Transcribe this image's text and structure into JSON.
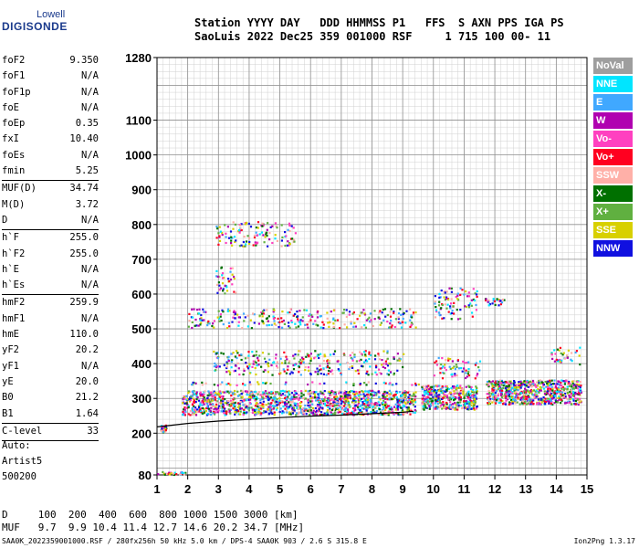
{
  "logo": {
    "line1": "Lowell",
    "line2": "DIGISONDE"
  },
  "header": {
    "line1": "Station YYYY DAY   DDD HHMMSS P1   FFS  S AXN PPS IGA PS",
    "line2": "SaoLuis 2022 Dec25 359 001000 RSF     1 715 100 00- 11"
  },
  "params": {
    "g1": [
      [
        "foF2",
        "9.350"
      ],
      [
        "foF1",
        "N/A"
      ],
      [
        "foF1p",
        "N/A"
      ],
      [
        "foE",
        "N/A"
      ],
      [
        "foEp",
        "0.35"
      ],
      [
        "fxI",
        "10.40"
      ],
      [
        "foEs",
        "N/A"
      ],
      [
        "fmin",
        "5.25"
      ]
    ],
    "g2": [
      [
        "MUF(D)",
        "34.74"
      ],
      [
        "M(D)",
        "3.72"
      ],
      [
        "D",
        "N/A"
      ]
    ],
    "g3": [
      [
        "h`F",
        "255.0"
      ],
      [
        "h`F2",
        "255.0"
      ],
      [
        "h`E",
        "N/A"
      ],
      [
        "h`Es",
        "N/A"
      ]
    ],
    "g4": [
      [
        "hmF2",
        "259.9"
      ],
      [
        "hmF1",
        "N/A"
      ],
      [
        "hmE",
        "110.0"
      ],
      [
        "yF2",
        "20.2"
      ],
      [
        "yF1",
        "N/A"
      ],
      [
        "yE",
        "20.0"
      ],
      [
        "B0",
        "21.2"
      ],
      [
        "B1",
        "1.64"
      ]
    ],
    "g5": [
      [
        "C-level",
        "33"
      ]
    ]
  },
  "auto": {
    "l1": "Auto:",
    "l2": "Artist5",
    "l3": "500200"
  },
  "legend": [
    {
      "label": "NoVal",
      "color": "#9e9e9e"
    },
    {
      "label": "NNE",
      "color": "#00e5ff"
    },
    {
      "label": "E",
      "color": "#40a8ff"
    },
    {
      "label": "W",
      "color": "#b000b0"
    },
    {
      "label": "Vo-",
      "color": "#ff40c0"
    },
    {
      "label": "Vo+",
      "color": "#ff0020"
    },
    {
      "label": "SSW",
      "color": "#ffb0a8"
    },
    {
      "label": "X-",
      "color": "#007000"
    },
    {
      "label": "X+",
      "color": "#60b040"
    },
    {
      "label": "SSE",
      "color": "#d8d000"
    },
    {
      "label": "NNW",
      "color": "#1010e0"
    }
  ],
  "muf_table": {
    "row1": "D     100  200  400  600  800 1000 1500 3000 [km]",
    "row2": "MUF   9.7  9.9 10.4 11.4 12.7 14.6 20.2 34.7 [MHz]"
  },
  "footer": {
    "left": "SAA0K_2022359001000.RSF / 280fx256h 50 kHz 5.0 km / DPS-4 SAA0K 903 / 2.6 S 315.8 E",
    "right": "Ion2Png 1.3.17"
  },
  "chart_data": {
    "type": "scatter",
    "xlim": [
      1,
      15
    ],
    "x_ticks": [
      1,
      2,
      3,
      4,
      5,
      6,
      7,
      8,
      9,
      10,
      11,
      12,
      13,
      14,
      15
    ],
    "ylim": [
      80,
      1280
    ],
    "y_ticks": [
      80,
      200,
      300,
      400,
      500,
      600,
      700,
      800,
      900,
      1000,
      1100,
      1280
    ],
    "grid": true,
    "trace": [
      [
        1.0,
        218
      ],
      [
        2.0,
        228
      ],
      [
        3.0,
        235
      ],
      [
        4.0,
        240
      ],
      [
        5.0,
        245
      ],
      [
        6.0,
        249
      ],
      [
        7.0,
        252
      ],
      [
        8.0,
        256
      ],
      [
        9.0,
        260
      ],
      [
        9.35,
        263
      ]
    ],
    "clusters": [
      {
        "x": [
          1.0,
          1.9
        ],
        "y": [
          82,
          92
        ]
      },
      {
        "x": [
          1.1,
          1.3
        ],
        "y": [
          205,
          225
        ]
      },
      {
        "x": [
          1.8,
          9.4
        ],
        "y": [
          255,
          325
        ]
      },
      {
        "x": [
          9.6,
          11.4
        ],
        "y": [
          270,
          340
        ]
      },
      {
        "x": [
          11.7,
          14.8
        ],
        "y": [
          285,
          355
        ]
      },
      {
        "x": [
          2.0,
          9.4
        ],
        "y": [
          505,
          560
        ]
      },
      {
        "x": [
          10.0,
          11.4
        ],
        "y": [
          530,
          620
        ]
      },
      {
        "x": [
          2.0,
          9.5
        ],
        "y": [
          340,
          350
        ]
      },
      {
        "x": [
          2.8,
          9.0
        ],
        "y": [
          370,
          440
        ]
      },
      {
        "x": [
          10.0,
          11.5
        ],
        "y": [
          360,
          420
        ]
      },
      {
        "x": [
          2.9,
          3.6
        ],
        "y": [
          600,
          680
        ]
      },
      {
        "x": [
          2.9,
          5.5
        ],
        "y": [
          740,
          810
        ]
      },
      {
        "x": [
          11.6,
          12.3
        ],
        "y": [
          570,
          590
        ]
      },
      {
        "x": [
          13.8,
          14.8
        ],
        "y": [
          400,
          450
        ]
      }
    ]
  }
}
